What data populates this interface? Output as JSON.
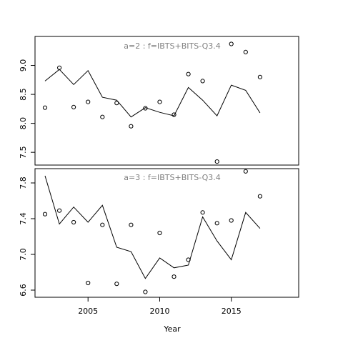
{
  "chart_data": [
    {
      "type": "scatter",
      "title": "a=2  :  f=IBTS+BITS-Q3.4",
      "xlabel": "Year",
      "ylabel": "",
      "xlim": [
        2001.3,
        2019.7
      ],
      "ylim": [
        7.28,
        9.5
      ],
      "x_ticks": [
        2005,
        2010,
        2015
      ],
      "y_ticks": [
        7.5,
        8.0,
        8.5,
        9.0
      ],
      "y_tick_labels": [
        "7.5",
        "8.0",
        "8.5",
        "9.0"
      ],
      "grid": false,
      "series": [
        {
          "style": "points",
          "x": [
            2002,
            2003,
            2004,
            2005,
            2006,
            2007,
            2008,
            2009,
            2010,
            2011,
            2012,
            2013,
            2014,
            2015,
            2016,
            2017
          ],
          "y": [
            8.27,
            8.96,
            8.28,
            8.37,
            8.11,
            8.35,
            7.95,
            8.26,
            8.37,
            8.15,
            8.85,
            8.73,
            7.34,
            9.37,
            9.23,
            8.8
          ]
        },
        {
          "style": "line",
          "x": [
            2002,
            2003,
            2004,
            2005,
            2006,
            2007,
            2008,
            2009,
            2010,
            2011,
            2012,
            2013,
            2014,
            2015,
            2016,
            2017
          ],
          "y": [
            8.73,
            8.93,
            8.67,
            8.91,
            8.45,
            8.4,
            8.11,
            8.27,
            8.19,
            8.13,
            8.62,
            8.4,
            8.13,
            8.66,
            8.57,
            8.18
          ]
        }
      ]
    },
    {
      "type": "scatter",
      "title": "a=3  :  f=IBTS+BITS-Q3.4",
      "xlabel": "Year",
      "ylabel": "",
      "xlim": [
        2001.3,
        2019.7
      ],
      "ylim": [
        6.52,
        7.96
      ],
      "x_ticks": [
        2005,
        2010,
        2015
      ],
      "y_ticks": [
        6.6,
        7.0,
        7.4,
        7.8
      ],
      "y_tick_labels": [
        "6.6",
        "7.0",
        "7.4",
        "7.8"
      ],
      "grid": false,
      "series": [
        {
          "style": "points",
          "x": [
            2002,
            2003,
            2004,
            2005,
            2006,
            2007,
            2008,
            2009,
            2010,
            2011,
            2012,
            2013,
            2014,
            2015,
            2016,
            2017
          ],
          "y": [
            7.45,
            7.49,
            7.36,
            6.68,
            7.33,
            6.67,
            7.33,
            6.58,
            7.24,
            6.75,
            6.94,
            7.47,
            7.35,
            7.38,
            7.93,
            7.65
          ]
        },
        {
          "style": "line",
          "x": [
            2002,
            2003,
            2004,
            2005,
            2006,
            2007,
            2008,
            2009,
            2010,
            2011,
            2012,
            2013,
            2014,
            2015,
            2016,
            2017
          ],
          "y": [
            7.88,
            7.34,
            7.53,
            7.36,
            7.55,
            7.08,
            7.03,
            6.73,
            6.96,
            6.85,
            6.88,
            7.42,
            7.15,
            6.94,
            7.47,
            7.29
          ]
        }
      ]
    }
  ]
}
